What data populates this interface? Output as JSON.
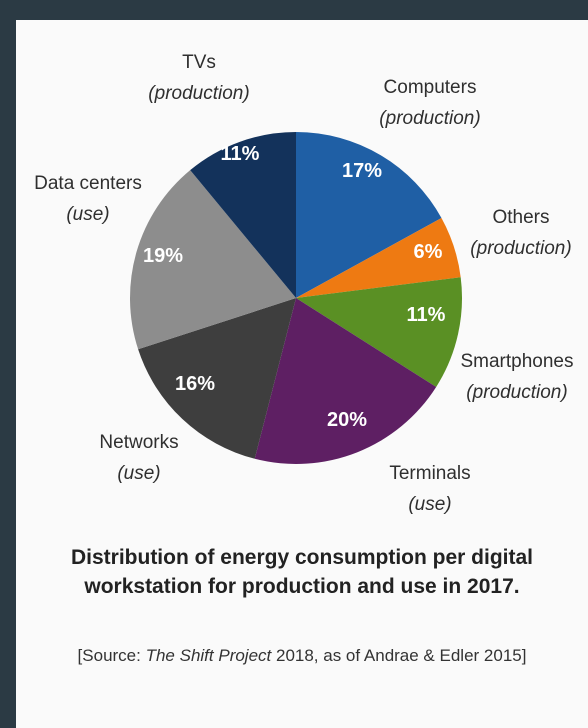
{
  "chart_data": {
    "type": "pie",
    "title_lines": [
      "Distribution of energy consumption per digital",
      "workstation for production and use in 2017."
    ],
    "source": {
      "prefix": "[Source: ",
      "italic": "The Shift Project",
      "suffix": " 2018, as of Andrae & Edler 2015]"
    },
    "slices": [
      {
        "name": "Computers",
        "sub": "(production)",
        "value": 17,
        "label": "17%",
        "color": "#1f5fa5"
      },
      {
        "name": "Others",
        "sub": "(production)",
        "value": 6,
        "label": "6%",
        "color": "#ee7a12"
      },
      {
        "name": "Smartphones",
        "sub": "(production)",
        "value": 11,
        "label": "11%",
        "color": "#5a9024"
      },
      {
        "name": "Terminals",
        "sub": "(use)",
        "value": 20,
        "label": "20%",
        "color": "#5e1f63"
      },
      {
        "name": "Networks",
        "sub": "(use)",
        "value": 16,
        "label": "16%",
        "color": "#3e3e3e"
      },
      {
        "name": "Data centers",
        "sub": "(use)",
        "value": 19,
        "label": "19%",
        "color": "#8d8d8d"
      },
      {
        "name": "TVs",
        "sub": "(production)",
        "value": 11,
        "label": "11%",
        "color": "#13325b"
      }
    ]
  }
}
